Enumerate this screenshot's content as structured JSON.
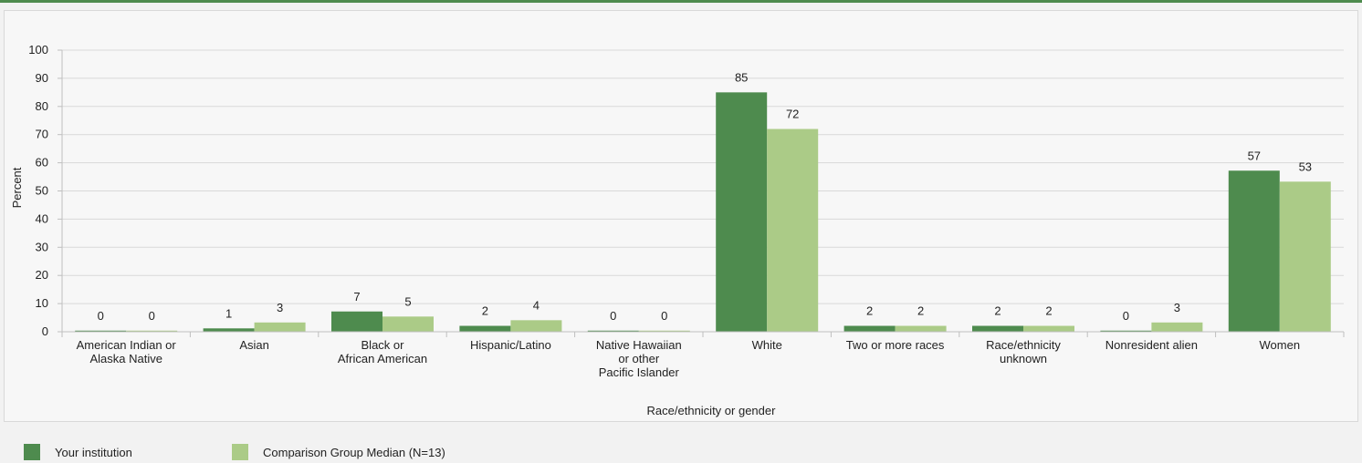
{
  "chart_data": {
    "type": "bar",
    "title": "",
    "xlabel": "Race/ethnicity or gender",
    "ylabel": "Percent",
    "ylim": [
      0,
      100
    ],
    "yticks": [
      "0",
      "10",
      "20",
      "30",
      "40",
      "50",
      "60",
      "70",
      "80",
      "90",
      "100"
    ],
    "grid": true,
    "legend_position": "bottom-left",
    "categories": [
      [
        "American Indian or",
        "Alaska Native"
      ],
      [
        "Asian"
      ],
      [
        "Black or",
        "African American"
      ],
      [
        "Hispanic/Latino"
      ],
      [
        "Native Hawaiian",
        "or other",
        "Pacific Islander"
      ],
      [
        "White"
      ],
      [
        "Two or more races"
      ],
      [
        "Race/ethnicity",
        "unknown"
      ],
      [
        "Nonresident alien"
      ],
      [
        "Women"
      ]
    ],
    "series": [
      {
        "name": "Your institution",
        "color": "#4e8b4e",
        "values": [
          0.4,
          1.2,
          7.2,
          2.1,
          0.4,
          85,
          2.1,
          2.1,
          0.4,
          57.2
        ],
        "labels": [
          "0",
          "1",
          "7",
          "2",
          "0",
          "85",
          "2",
          "2",
          "0",
          "57"
        ]
      },
      {
        "name": "Comparison Group Median (N=13)",
        "color": "#abcb87",
        "values": [
          0.4,
          3.3,
          5.4,
          4.1,
          0.4,
          72,
          2.1,
          2.1,
          3.3,
          53.3
        ],
        "labels": [
          "0",
          "3",
          "5",
          "4",
          "0",
          "72",
          "2",
          "2",
          "3",
          "53"
        ]
      }
    ]
  },
  "legend": {
    "items": [
      {
        "label": "Your institution",
        "color": "#4e8b4e"
      },
      {
        "label": "Comparison Group Median (N=13)",
        "color": "#abcb87"
      }
    ]
  }
}
